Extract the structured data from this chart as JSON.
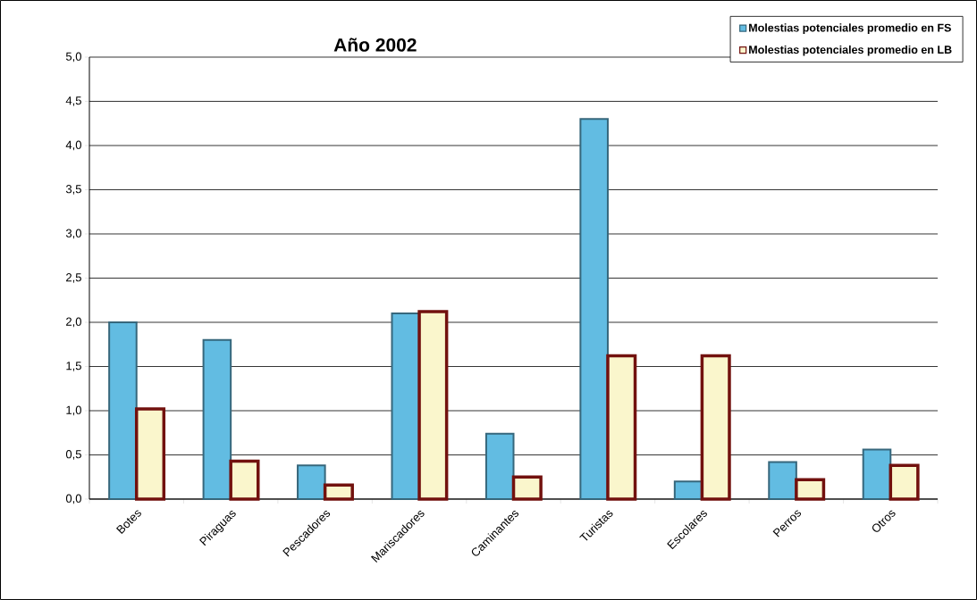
{
  "chart_data": {
    "type": "bar",
    "title": "Año 2002",
    "categories": [
      "Botes",
      "Piraguas",
      "Pescadores",
      "Mariscadores",
      "Caminantes",
      "Turistas",
      "Escolares",
      "Perros",
      "Otros"
    ],
    "series": [
      {
        "name": "Molestias potenciales promedio en FS",
        "color": "#62bce2",
        "values": [
          2.0,
          1.8,
          0.38,
          2.1,
          0.74,
          4.3,
          0.2,
          0.42,
          0.56
        ]
      },
      {
        "name": "Molestias potenciales promedio en LB",
        "color": "#faf6cc",
        "values": [
          1.02,
          0.43,
          0.16,
          2.12,
          0.25,
          1.62,
          1.62,
          0.22,
          0.38
        ]
      }
    ],
    "ylim": [
      0,
      5
    ],
    "yticks": [
      {
        "value": 0,
        "label": "0,0"
      },
      {
        "value": 0.5,
        "label": "0,5"
      },
      {
        "value": 1,
        "label": "1,0"
      },
      {
        "value": 1.5,
        "label": "1,5"
      },
      {
        "value": 2,
        "label": "2,0"
      },
      {
        "value": 2.5,
        "label": "2,5"
      },
      {
        "value": 3,
        "label": "3,0"
      },
      {
        "value": 3.5,
        "label": "3,5"
      },
      {
        "value": 4,
        "label": "4,0"
      },
      {
        "value": 4.5,
        "label": "4,5"
      },
      {
        "value": 5,
        "label": "5,0"
      }
    ],
    "grid": "y",
    "legend": "top right"
  }
}
